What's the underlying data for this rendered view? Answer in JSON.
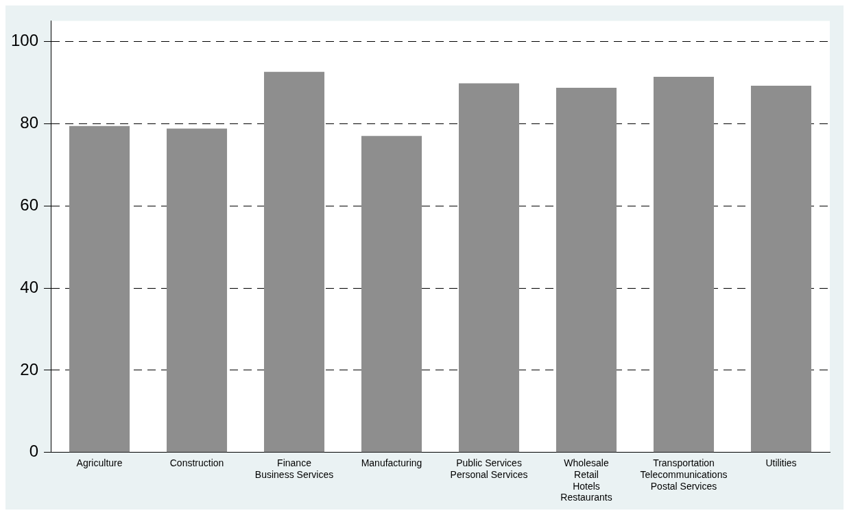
{
  "chart_data": {
    "type": "bar",
    "categories": [
      "Agriculture",
      "Construction",
      "Finance\nBusiness Services",
      "Manufacturing",
      "Public Services\nPersonal Services",
      "Wholesale\nRetail\nHotels\nRestaurants",
      "Transportation\nTelecommunications\nPostal Services",
      "Utilities"
    ],
    "values": [
      79.4,
      78.8,
      92.6,
      77.0,
      89.8,
      88.7,
      91.4,
      89.2
    ],
    "color": "#8e8e8e",
    "ylim": [
      0,
      105
    ],
    "yticks": [
      0,
      20,
      40,
      60,
      80,
      100
    ],
    "grid": "y"
  }
}
